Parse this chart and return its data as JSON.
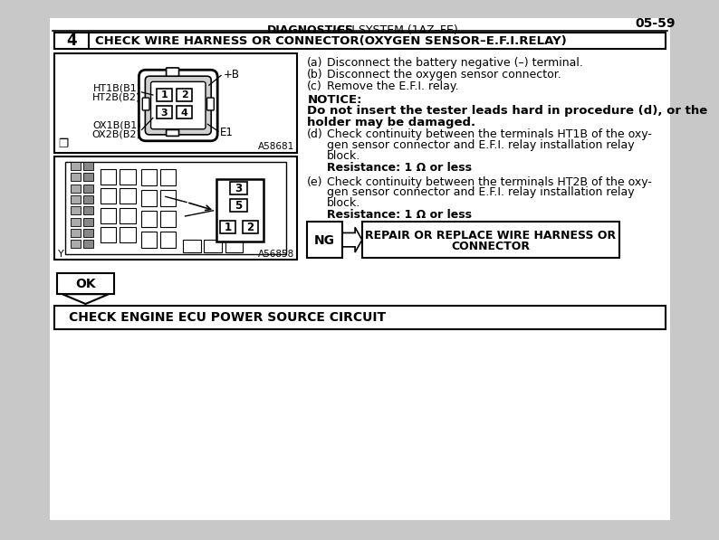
{
  "page_num": "05-59",
  "header_bold": "DIAGNOSTICS",
  "header_normal": " –  EFI SYSTEM (1AZ–FE)",
  "step_num": "4",
  "step_title": "CHECK WIRE HARNESS OR CONNECTOR(OXYGEN SENSOR–E.F.I.RELAY)",
  "instr_a": "(a)",
  "instr_a_text": "Disconnect the battery negative (–) terminal.",
  "instr_b": "(b)",
  "instr_b_text": "Disconnect the oxygen sensor connector.",
  "instr_c": "(c)",
  "instr_c_text": "Remove the E.F.I. relay.",
  "notice_label": "NOTICE:",
  "notice_line1": "Do not insert the tester leads hard in procedure (d), or the",
  "notice_line2": "holder may be damaged.",
  "step_d_key": "(d)",
  "step_d_line1": "Check continuity between the terminals HT1B of the oxy-",
  "step_d_line2": "gen sensor connector and E.F.I. relay installation relay",
  "step_d_line3": "block.",
  "step_d_resistance": "Resistance: 1 Ω or less",
  "step_e_key": "(e)",
  "step_e_line1": "Check continuity between the terminals HT2B of the oxy-",
  "step_e_line2": "gen sensor connector and E.F.I. relay installation relay",
  "step_e_line3": "block.",
  "step_e_resistance": "Resistance: 1 Ω or less",
  "diag1_code": "A58681",
  "diag2_code": "A56858",
  "label_ht1b": "HT1B(B1)",
  "label_ht2b": "HT2B(B2)",
  "label_ox1b": "OX1B(B1)",
  "label_ox2b": "OX2B(B2)",
  "label_pb": "+B",
  "label_e1": "E1",
  "ng_label": "NG",
  "ng_line1": "REPAIR OR REPLACE WIRE HARNESS OR",
  "ng_line2": "CONNECTOR",
  "ok_label": "OK",
  "bottom_step": "CHECK ENGINE ECU POWER SOURCE CIRCUIT",
  "bg_color": "#c8c8c8",
  "page_bg": "#ffffff",
  "text_color": "#000000"
}
